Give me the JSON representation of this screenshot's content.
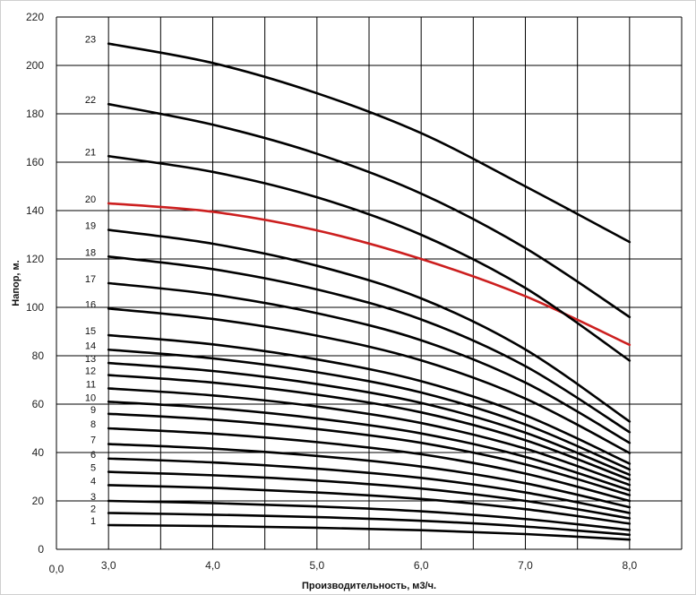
{
  "chart_data": {
    "type": "line",
    "xlabel": "Производительность,  м3/ч.",
    "ylabel": "Напор, м.",
    "xlim": [
      2.5,
      8.5
    ],
    "ylim": [
      0,
      220
    ],
    "x_ticks": [
      {
        "value": 3.0,
        "label": "3,0"
      },
      {
        "value": 4.0,
        "label": "4,0"
      },
      {
        "value": 5.0,
        "label": "5,0"
      },
      {
        "value": 6.0,
        "label": "6,0"
      },
      {
        "value": 7.0,
        "label": "7,0"
      },
      {
        "value": 8.0,
        "label": "8,0"
      }
    ],
    "x_origin_label": "0,0",
    "y_ticks": [
      0,
      20,
      40,
      60,
      80,
      100,
      120,
      140,
      160,
      180,
      200,
      220
    ],
    "grid": true,
    "highlight_color": "#cc1f1f",
    "line_color": "#000000",
    "x": [
      3.0,
      4.0,
      5.0,
      6.0,
      7.0,
      8.0
    ],
    "series": [
      {
        "name": "1",
        "values": [
          10.0,
          9.6,
          8.9,
          7.9,
          6.3,
          4.0
        ]
      },
      {
        "name": "2",
        "values": [
          15.0,
          14.3,
          13.3,
          11.8,
          9.4,
          6.0
        ]
      },
      {
        "name": "3",
        "values": [
          20.0,
          19.1,
          17.7,
          15.7,
          12.5,
          8.0
        ]
      },
      {
        "name": "4",
        "values": [
          26.5,
          25.4,
          23.5,
          20.8,
          16.6,
          10.6
        ]
      },
      {
        "name": "5",
        "values": [
          32.0,
          30.6,
          28.4,
          25.1,
          20.0,
          12.8
        ]
      },
      {
        "name": "6",
        "values": [
          37.5,
          35.9,
          33.3,
          29.5,
          23.5,
          15.0
        ]
      },
      {
        "name": "7",
        "values": [
          43.5,
          41.6,
          38.6,
          34.2,
          27.3,
          17.4
        ]
      },
      {
        "name": "8",
        "values": [
          50.0,
          47.8,
          44.3,
          39.3,
          31.3,
          20.0
        ]
      },
      {
        "name": "9",
        "values": [
          56.0,
          53.6,
          49.7,
          44.0,
          35.1,
          22.4
        ]
      },
      {
        "name": "10",
        "values": [
          61.0,
          58.4,
          54.1,
          47.9,
          38.2,
          24.4
        ]
      },
      {
        "name": "11",
        "values": [
          66.5,
          63.6,
          59.0,
          52.2,
          41.6,
          26.6
        ]
      },
      {
        "name": "12",
        "values": [
          72.0,
          68.9,
          63.9,
          56.6,
          45.1,
          28.8
        ]
      },
      {
        "name": "13",
        "values": [
          77.0,
          73.7,
          68.3,
          60.5,
          48.2,
          30.8
        ]
      },
      {
        "name": "14",
        "values": [
          82.5,
          78.9,
          73.2,
          64.8,
          51.6,
          33.0
        ]
      },
      {
        "name": "15",
        "values": [
          88.5,
          84.7,
          78.5,
          69.5,
          55.4,
          35.4
        ]
      },
      {
        "name": "16",
        "values": [
          99.5,
          95.2,
          88.3,
          78.1,
          62.3,
          39.8
        ]
      },
      {
        "name": "17",
        "values": [
          110.0,
          105.3,
          97.6,
          86.4,
          68.9,
          44.0
        ]
      },
      {
        "name": "18",
        "values": [
          121.0,
          115.8,
          107.4,
          95.0,
          75.7,
          48.4
        ]
      },
      {
        "name": "19",
        "values": [
          132.0,
          126.3,
          117.2,
          103.7,
          82.6,
          52.8
        ]
      },
      {
        "name": "20",
        "values": [
          143.0,
          139.5,
          131.8,
          120.0,
          104.6,
          84.5
        ],
        "highlight": true
      },
      {
        "name": "21",
        "values": [
          162.5,
          156.0,
          145.5,
          130.0,
          108.0,
          78.0
        ]
      },
      {
        "name": "22",
        "values": [
          184.0,
          175.5,
          163.5,
          147.0,
          124.5,
          96.0
        ]
      },
      {
        "name": "23",
        "values": [
          209.0,
          201.0,
          188.5,
          172.0,
          150.0,
          127.0
        ]
      }
    ]
  }
}
